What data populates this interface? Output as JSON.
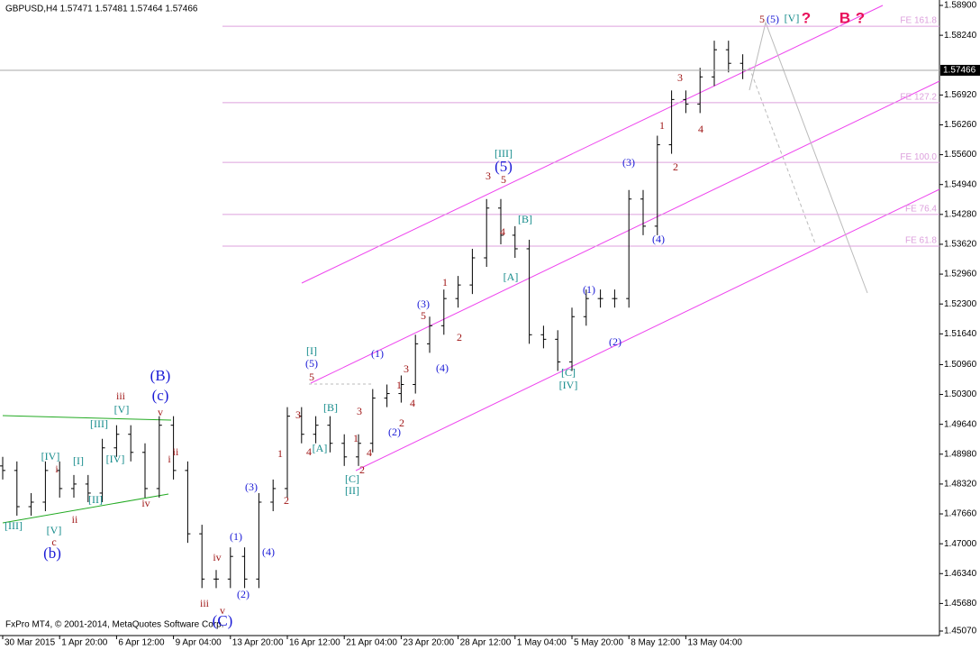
{
  "chart_data": {
    "type": "ohlc",
    "title": "GBPUSD,H4  1.57471 1.57481 1.57464 1.57466",
    "footer": "FxPro MT4, © 2001-2014, MetaQuotes Software Corp.",
    "categories": [
      "30 Mar 2015",
      null,
      null,
      null,
      "1 Apr 20:00",
      null,
      null,
      null,
      "6 Apr 12:00",
      null,
      null,
      null,
      "9 Apr 04:00",
      null,
      null,
      null,
      "13 Apr 20:00",
      null,
      null,
      null,
      "16 Apr 12:00",
      null,
      null,
      null,
      "21 Apr 04:00",
      null,
      null,
      null,
      "23 Apr 20:00",
      null,
      null,
      null,
      "28 Apr 12:00",
      null,
      null,
      null,
      "1 May 04:00",
      null,
      null,
      null,
      "5 May 20:00",
      null,
      null,
      null,
      "8 May 12:00",
      null,
      null,
      null,
      "13 May 04:00",
      null,
      null,
      null,
      null
    ],
    "open": [
      1.4872,
      1.4862,
      1.4782,
      1.4792,
      1.4862,
      1.4822,
      1.4832,
      1.4812,
      1.4912,
      1.4942,
      1.4902,
      1.4822,
      1.4962,
      1.4862,
      1.4722,
      1.4622,
      1.4622,
      1.4672,
      1.4622,
      1.4792,
      1.4822,
      1.4982,
      1.4942,
      1.4962,
      1.4922,
      1.4892,
      1.4922,
      1.5022,
      1.5032,
      1.5052,
      1.5142,
      1.5182,
      1.5242,
      1.5272,
      1.5332,
      1.5442,
      1.5382,
      1.5352,
      1.5162,
      1.5152,
      1.5102,
      1.5202,
      1.5242,
      1.5242,
      1.5242,
      1.5462,
      1.5402,
      1.5582,
      1.5682,
      1.5672,
      1.5732,
      1.5792,
      1.5762
    ],
    "high": [
      1.4892,
      1.4882,
      1.4812,
      1.4882,
      1.4882,
      1.4852,
      1.4852,
      1.4932,
      1.4962,
      1.4962,
      1.4922,
      1.4982,
      1.4982,
      1.4882,
      1.4742,
      1.4642,
      1.4692,
      1.4692,
      1.4812,
      1.4842,
      1.5002,
      1.5002,
      1.4982,
      1.4982,
      1.4942,
      1.4942,
      1.5042,
      1.5052,
      1.5072,
      1.5162,
      1.5202,
      1.5262,
      1.5292,
      1.5352,
      1.5462,
      1.5462,
      1.5402,
      1.5372,
      1.5182,
      1.5172,
      1.5222,
      1.5262,
      1.5262,
      1.5262,
      1.5482,
      1.5482,
      1.5602,
      1.5702,
      1.5702,
      1.5752,
      1.5812,
      1.5812,
      1.5782
    ],
    "low": [
      1.4842,
      1.4762,
      1.4762,
      1.4772,
      1.4802,
      1.4802,
      1.4792,
      1.4792,
      1.4892,
      1.4882,
      1.4802,
      1.4802,
      1.4842,
      1.4702,
      1.4602,
      1.4602,
      1.4602,
      1.4602,
      1.4602,
      1.4772,
      1.4802,
      1.4922,
      1.4922,
      1.4902,
      1.4872,
      1.4872,
      1.4902,
      1.5002,
      1.5012,
      1.5032,
      1.5122,
      1.5162,
      1.5222,
      1.5252,
      1.5312,
      1.5362,
      1.5332,
      1.5142,
      1.5132,
      1.5082,
      1.5082,
      1.5182,
      1.5222,
      1.5222,
      1.5222,
      1.5382,
      1.5382,
      1.5562,
      1.5652,
      1.5652,
      1.5712,
      1.5742,
      1.5727
    ],
    "close": [
      1.4862,
      1.4782,
      1.4792,
      1.4862,
      1.4822,
      1.4832,
      1.4812,
      1.4912,
      1.4942,
      1.4902,
      1.4822,
      1.4962,
      1.4862,
      1.4722,
      1.4622,
      1.4622,
      1.4672,
      1.4622,
      1.4792,
      1.4822,
      1.4982,
      1.4942,
      1.4962,
      1.4922,
      1.4892,
      1.4922,
      1.5022,
      1.5032,
      1.5052,
      1.5142,
      1.5182,
      1.5242,
      1.5272,
      1.5332,
      1.5442,
      1.5382,
      1.5352,
      1.5162,
      1.5152,
      1.5102,
      1.5202,
      1.5242,
      1.5242,
      1.5242,
      1.5462,
      1.5402,
      1.5582,
      1.5682,
      1.5672,
      1.5732,
      1.5792,
      1.5762,
      1.5747
    ],
    "color": "#000000",
    "ylim": [
      1.4507,
      1.589
    ],
    "yticks": [
      {
        "value": 1.589,
        "label": "1.58900"
      },
      {
        "value": 1.5824,
        "label": "1.58240"
      },
      {
        "value": 1.5692,
        "label": "1.56920"
      },
      {
        "value": 1.5626,
        "label": "1.56260"
      },
      {
        "value": 1.556,
        "label": "1.55600"
      },
      {
        "value": 1.5494,
        "label": "1.54940"
      },
      {
        "value": 1.5428,
        "label": "1.54280"
      },
      {
        "value": 1.5362,
        "label": "1.53620"
      },
      {
        "value": 1.5296,
        "label": "1.52960"
      },
      {
        "value": 1.523,
        "label": "1.52300"
      },
      {
        "value": 1.5164,
        "label": "1.51640"
      },
      {
        "value": 1.5096,
        "label": "1.50960"
      },
      {
        "value": 1.503,
        "label": "1.50300"
      },
      {
        "value": 1.4964,
        "label": "1.49640"
      },
      {
        "value": 1.4898,
        "label": "1.48980"
      },
      {
        "value": 1.4832,
        "label": "1.48320"
      },
      {
        "value": 1.4766,
        "label": "1.47660"
      },
      {
        "value": 1.47,
        "label": "1.47000"
      },
      {
        "value": 1.4634,
        "label": "1.46340"
      },
      {
        "value": 1.4568,
        "label": "1.45680"
      },
      {
        "value": 1.4507,
        "label": "1.45070"
      }
    ],
    "current_price": 1.57466,
    "levels": [
      {
        "value": 1.5844,
        "label": "FE 161.8"
      },
      {
        "value": 1.5675,
        "label": "FE 127.2"
      },
      {
        "value": 1.5543,
        "label": "FE 100.0"
      },
      {
        "value": 1.5428,
        "label": "FE 76.4"
      },
      {
        "value": 1.5358,
        "label": "FE 61.8"
      }
    ],
    "level_color": "#dda0dd",
    "annotations": [
      {
        "color": "#1a1ad6",
        "texts": [
          "(b)",
          "(B)",
          "(c)",
          "(C)",
          "(1)",
          "(2)",
          "(3)",
          "(4)",
          "(5)",
          "(1)",
          "(2)",
          "(3)",
          "(4)",
          "(5)",
          "(1)",
          "(2)",
          "(3)",
          "(4)",
          "(5)"
        ]
      },
      {
        "color": "#138a8a",
        "texts": [
          "[IV]",
          "[V]",
          "[III]",
          "[I]",
          "[II]",
          "[III]",
          "[V]",
          "[IV]",
          "[I]",
          "[B]",
          "[A]",
          "[C]",
          "[II]",
          "[III]",
          "[B]",
          "[A]",
          "[C]",
          "[IV]",
          "[V]"
        ]
      },
      {
        "color": "#a01818",
        "texts": [
          "c",
          "i",
          "ii",
          "iii",
          "v",
          "ii",
          "i",
          "iv",
          "iv",
          "iii",
          "v",
          "1",
          "2",
          "3",
          "4",
          "5",
          "1",
          "2",
          "3",
          "4",
          "1",
          "2",
          "3",
          "4",
          "5",
          "1",
          "2",
          "3",
          "5",
          "4",
          "1",
          "2",
          "3",
          "4",
          "5"
        ]
      },
      {
        "color": "#e8105a",
        "texts": [
          "?",
          "B",
          "?"
        ]
      }
    ]
  }
}
